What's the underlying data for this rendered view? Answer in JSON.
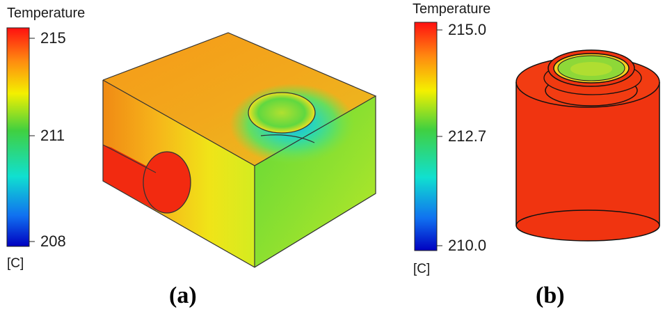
{
  "panel_a": {
    "legend": {
      "title": "Temperature",
      "ticks": [
        "215",
        "211",
        "208"
      ],
      "unit": "[C]",
      "max": 215,
      "mid": 211,
      "min": 208
    },
    "caption": "(a)"
  },
  "panel_b": {
    "legend": {
      "title": "Temperature",
      "ticks": [
        "215.0",
        "212.7",
        "210.0"
      ],
      "unit": "[C]",
      "max": 215.0,
      "mid": 212.7,
      "min": 210.0
    },
    "caption": "(b)"
  },
  "colors": {
    "hot": "#ff2a10",
    "orange": "#ff9a10",
    "yellow": "#f0f000",
    "green": "#30d030",
    "cyan": "#10e0e0",
    "blue": "#2030f0",
    "deep_blue": "#0000cc"
  }
}
